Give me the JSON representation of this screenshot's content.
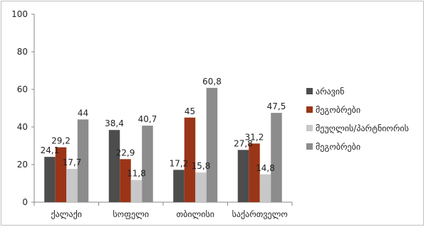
{
  "chart_data": {
    "type": "bar",
    "categories": [
      "ქალაქი",
      "სოფელი",
      "თბილისი",
      "საქართველო"
    ],
    "series": [
      {
        "name": "არავინ",
        "color": "#4d4d4d",
        "values": [
          24.1,
          38.4,
          17.2,
          27.8
        ],
        "labels": [
          "24,1",
          "38,4",
          "17,2",
          "27,8"
        ]
      },
      {
        "name": "მეგობრები",
        "color": "#9a3517",
        "values": [
          29.2,
          22.9,
          45,
          31.2
        ],
        "labels": [
          "29,2",
          "22,9",
          "45",
          "31,2"
        ]
      },
      {
        "name": "მეუღლის/პარტნიორის",
        "color": "#c8c8c8",
        "values": [
          17.7,
          11.8,
          15.8,
          14.8
        ],
        "labels": [
          "17,7",
          "11,8",
          "15,8",
          "14,8"
        ]
      },
      {
        "name": "მეგობრები",
        "color": "#8c8c8c",
        "values": [
          44,
          40.7,
          60.8,
          47.5
        ],
        "labels": [
          "44",
          "40,7",
          "60,8",
          "47,5"
        ]
      }
    ],
    "yticks": [
      "0",
      "20",
      "40",
      "60",
      "80",
      "100"
    ],
    "ylim": [
      0,
      100
    ],
    "grid": false,
    "legend": "right"
  }
}
